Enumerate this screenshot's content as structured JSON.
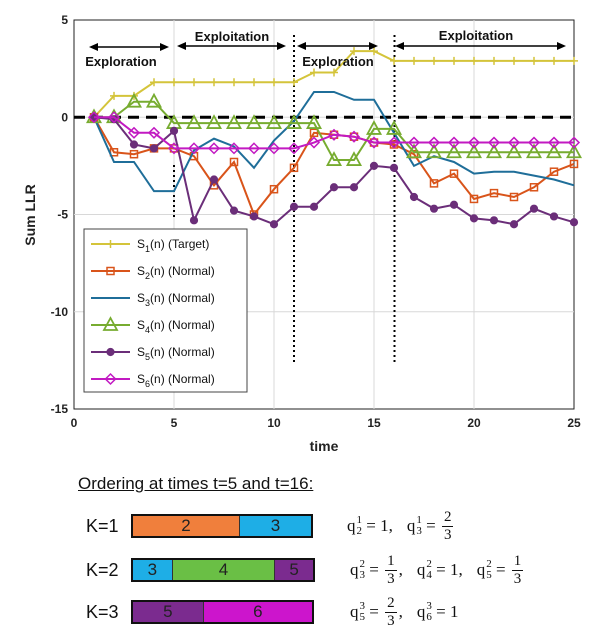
{
  "chart_data": {
    "type": "line",
    "xlabel": "time",
    "ylabel": "Sum LLR",
    "xlim": [
      0,
      25
    ],
    "ylim": [
      -15,
      5
    ],
    "xticks": [
      "0",
      "5",
      "10",
      "15",
      "20",
      "25"
    ],
    "yticks": [
      "5",
      "0",
      "-5",
      "-10",
      "-15"
    ],
    "x": [
      1,
      2,
      3,
      4,
      5,
      6,
      7,
      8,
      9,
      10,
      11,
      12,
      13,
      14,
      15,
      16,
      17,
      18,
      19,
      20,
      21,
      22,
      23,
      24,
      25
    ],
    "series": [
      {
        "name": "S1(n) (Target)",
        "color": "#d4c43a",
        "marker": "plus",
        "values": [
          0,
          1.1,
          1.1,
          1.8,
          1.8,
          1.8,
          1.8,
          1.8,
          1.8,
          1.8,
          1.8,
          2.3,
          2.3,
          3.4,
          3.4,
          2.9,
          2.9,
          2.9,
          2.9,
          2.9,
          2.9,
          2.9,
          2.9,
          2.9,
          2.9
        ]
      },
      {
        "name": "S2(n) (Normal)",
        "color": "#d9541a",
        "marker": "square",
        "values": [
          0,
          -1.8,
          -1.9,
          -1.6,
          -1.6,
          -2.0,
          -3.5,
          -2.3,
          -5.0,
          -3.7,
          -2.6,
          -0.8,
          -0.9,
          -1.0,
          -1.3,
          -1.4,
          -1.9,
          -3.4,
          -2.9,
          -4.2,
          -3.9,
          -4.1,
          -3.6,
          -2.8,
          -2.4
        ]
      },
      {
        "name": "S3(n) (Normal)",
        "color": "#1f6e99",
        "marker": "none",
        "values": [
          0,
          -2.3,
          -2.3,
          -3.8,
          -3.8,
          -1.7,
          -1.1,
          -1.5,
          -2.6,
          -1.2,
          -0.2,
          1.3,
          1.3,
          0.9,
          0.9,
          -0.8,
          -2.5,
          -2.0,
          -2.3,
          -2.9,
          -2.8,
          -2.8,
          -3.0,
          -3.2,
          -3.5
        ]
      },
      {
        "name": "S4(n) (Normal)",
        "color": "#77ac30",
        "marker": "triangle",
        "values": [
          0,
          0,
          0.8,
          0.8,
          -0.3,
          -0.3,
          -0.3,
          -0.3,
          -0.3,
          -0.3,
          -0.3,
          -0.3,
          -2.2,
          -2.2,
          -0.6,
          -0.6,
          -1.8,
          -1.8,
          -1.8,
          -1.8,
          -1.8,
          -1.8,
          -1.8,
          -1.8,
          -1.8
        ]
      },
      {
        "name": "S5(n) (Normal)",
        "color": "#6b2e79",
        "marker": "dot",
        "values": [
          0,
          -0.1,
          -1.4,
          -1.6,
          -0.7,
          -5.3,
          -3.2,
          -4.8,
          -5.1,
          -5.5,
          -4.6,
          -4.6,
          -3.6,
          -3.6,
          -2.5,
          -2.6,
          -4.1,
          -4.7,
          -4.5,
          -5.2,
          -5.3,
          -5.5,
          -4.7,
          -5.1,
          -5.4
        ]
      },
      {
        "name": "S6(n) (Normal)",
        "color": "#c21ac2",
        "marker": "diamond",
        "values": [
          0,
          0,
          -0.8,
          -0.8,
          -1.6,
          -1.6,
          -1.6,
          -1.6,
          -1.6,
          -1.6,
          -1.6,
          -1.3,
          -0.9,
          -1.0,
          -1.3,
          -1.3,
          -1.3,
          -1.3,
          -1.3,
          -1.3,
          -1.3,
          -1.3,
          -1.3,
          -1.3,
          -1.3
        ]
      }
    ],
    "reference_line": {
      "y": 0,
      "style": "dashed"
    },
    "phase_boundaries": [
      5,
      11,
      16
    ],
    "annotations": [
      "Exploration",
      "Exploitation",
      "Exploration",
      "Exploitation"
    ],
    "legend": {
      "position": "bottom-left",
      "entries": [
        {
          "base": "S",
          "sub": "1",
          "rest": "(n) (Target)"
        },
        {
          "base": "S",
          "sub": "2",
          "rest": "(n) (Normal)"
        },
        {
          "base": "S",
          "sub": "3",
          "rest": "(n) (Normal)"
        },
        {
          "base": "S",
          "sub": "4",
          "rest": "(n) (Normal)"
        },
        {
          "base": "S",
          "sub": "5",
          "rest": "(n) (Normal)"
        },
        {
          "base": "S",
          "sub": "6",
          "rest": "(n) (Normal)"
        }
      ]
    },
    "grid": true
  },
  "ordering": {
    "title": "Ordering at times t=5 and t=16:",
    "rows": [
      {
        "label": "K=1",
        "segments": [
          {
            "text": "2",
            "color": "#f07f3c",
            "share": 0.595
          },
          {
            "text": "3",
            "color": "#1eaee6",
            "share": 0.405
          }
        ]
      },
      {
        "label": "K=2",
        "segments": [
          {
            "text": "3",
            "color": "#1eaee6",
            "share": 0.215
          },
          {
            "text": "4",
            "color": "#6abf45",
            "share": 0.57
          },
          {
            "text": "5",
            "color": "#7b2b8f",
            "share": 0.215
          }
        ]
      },
      {
        "label": "K=3",
        "segments": [
          {
            "text": "5",
            "color": "#7b2b8f",
            "share": 0.39
          },
          {
            "text": "6",
            "color": "#cc15cc",
            "share": 0.61
          }
        ]
      }
    ],
    "formulas": [
      [
        {
          "sup": "1",
          "sub": "2",
          "val": "1"
        },
        {
          "sup": "1",
          "sub": "3",
          "num": "2",
          "den": "3"
        }
      ],
      [
        {
          "sup": "2",
          "sub": "3",
          "num": "1",
          "den": "3"
        },
        {
          "sup": "2",
          "sub": "4",
          "val": "1"
        },
        {
          "sup": "2",
          "sub": "5",
          "num": "1",
          "den": "3"
        }
      ],
      [
        {
          "sup": "3",
          "sub": "5",
          "num": "2",
          "den": "3"
        },
        {
          "sup": "3",
          "sub": "6",
          "val": "1"
        }
      ]
    ]
  }
}
